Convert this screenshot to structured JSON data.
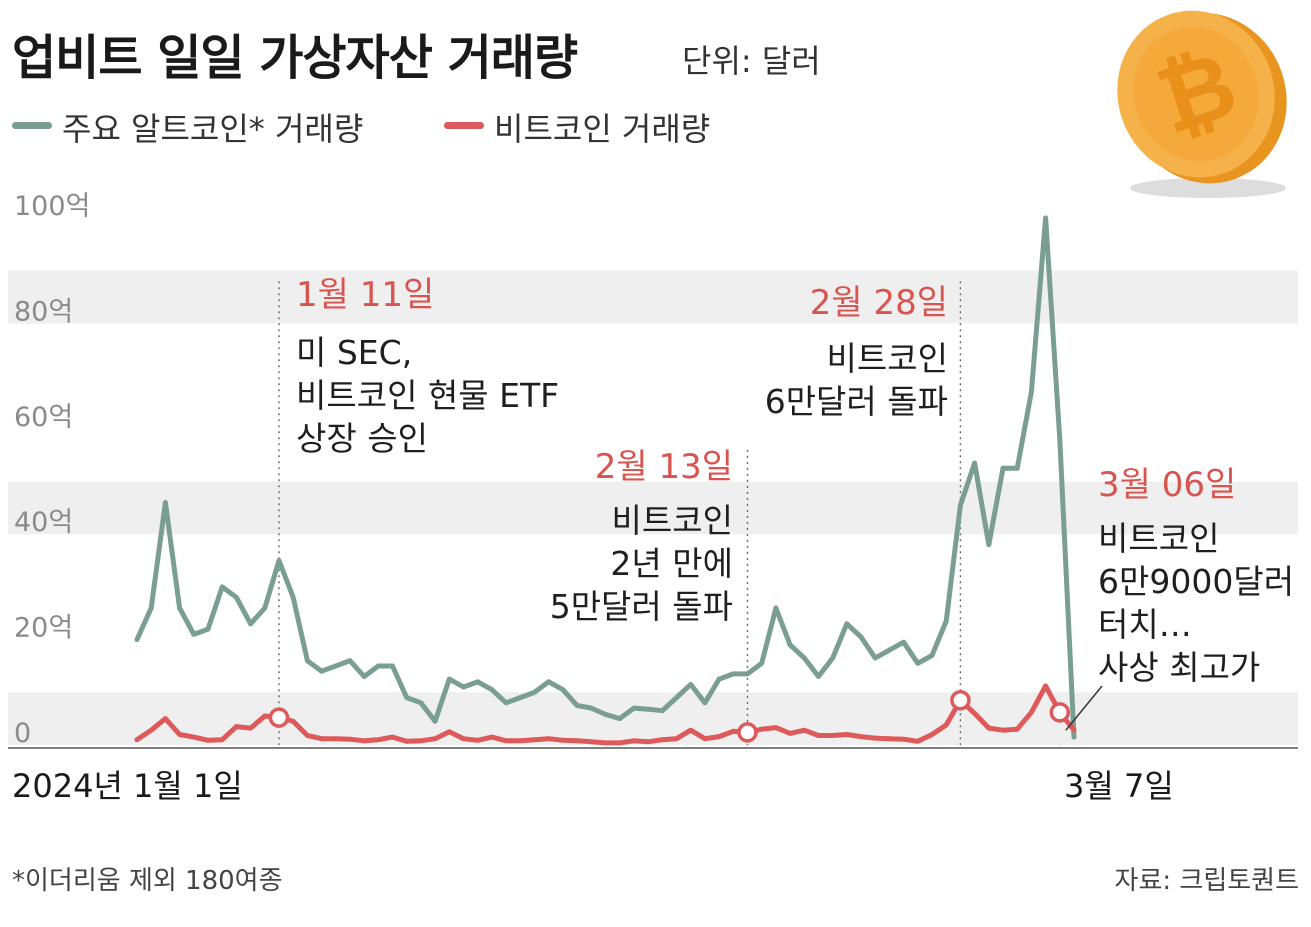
{
  "header": {
    "title": "업비트 일일 가상자산 거래량",
    "unit": "단위: 달러"
  },
  "legend": [
    {
      "label": "주요 알트코인* 거래량",
      "color": "#7a9e92"
    },
    {
      "label": "비트코인 거래량",
      "color": "#de5a5a"
    }
  ],
  "colors": {
    "band": "#efefef",
    "alt": "#7a9e92",
    "btc": "#de5a5a",
    "annotation_date": "#d9534f",
    "annotation_text": "#1f1f1f"
  },
  "chart_data": {
    "type": "line",
    "title": "업비트 일일 가상자산 거래량",
    "ylabel": "단위: 달러",
    "ylim": [
      0,
      100
    ],
    "y_ticks": [
      {
        "value": 0,
        "label": "0"
      },
      {
        "value": 20,
        "label": "20억"
      },
      {
        "value": 40,
        "label": "40억"
      },
      {
        "value": 60,
        "label": "60억"
      },
      {
        "value": 80,
        "label": "80억"
      },
      {
        "value": 100,
        "label": "100억"
      }
    ],
    "x_start_label": "2024년 1월 1일",
    "x_end_label": "3월 7일",
    "x_count": 67,
    "series": [
      {
        "name": "주요 알트코인* 거래량",
        "color": "#7a9e92",
        "values": [
          20,
          26,
          46,
          26,
          21,
          22,
          30,
          28,
          23,
          26,
          35,
          28,
          16,
          14,
          15,
          16,
          13,
          15,
          15,
          9,
          8,
          4.5,
          12.5,
          11,
          12,
          10.5,
          8,
          9,
          10,
          12,
          10.5,
          7.5,
          7,
          5.8,
          5,
          7,
          6.8,
          6.5,
          9,
          11.5,
          8,
          12.5,
          13.5,
          13.5,
          15.5,
          26,
          19,
          16.5,
          13,
          16.5,
          23,
          20.5,
          16.5,
          18,
          19.5,
          15.5,
          17,
          23.5,
          45.5,
          53.5,
          38,
          52.5,
          52.5,
          67,
          100,
          58,
          1.5
        ]
      },
      {
        "name": "비트코인 거래량",
        "color": "#de5a5a",
        "values": [
          1,
          2.8,
          5,
          2,
          1.5,
          0.9,
          1,
          3.5,
          3.2,
          5.5,
          5.2,
          4.5,
          1.8,
          1.2,
          1.2,
          1.1,
          0.8,
          1,
          1.5,
          0.7,
          0.8,
          1.2,
          2.5,
          1.2,
          0.9,
          1.5,
          0.8,
          0.8,
          1,
          1.2,
          0.9,
          0.8,
          0.6,
          0.4,
          0.4,
          0.8,
          0.6,
          1,
          1.2,
          2.8,
          1.2,
          1.6,
          2.6,
          2.4,
          3,
          3.3,
          2.2,
          2.8,
          1.8,
          1.8,
          2,
          1.6,
          1.3,
          1.2,
          1.1,
          0.7,
          2,
          3.8,
          8.5,
          6,
          3.2,
          2.8,
          3,
          6.2,
          11.2,
          6.2,
          2.8
        ]
      }
    ],
    "markers": [
      {
        "series": 1,
        "index": 10
      },
      {
        "series": 1,
        "index": 43
      },
      {
        "series": 1,
        "index": 58
      },
      {
        "series": 1,
        "index": 65
      }
    ],
    "annotations": [
      {
        "index": 10,
        "date": "1월 11일",
        "lines": [
          "미 SEC,",
          "비트코인 현물 ETF",
          "상장 승인"
        ],
        "align": "left",
        "line_top_value": 88
      },
      {
        "index": 43,
        "date": "2월 13일",
        "lines": [
          "비트코인",
          "2년 만에",
          "5만달러 돌파"
        ],
        "align": "right",
        "line_top_value": 56
      },
      {
        "index": 58,
        "date": "2월 28일",
        "lines": [
          "비트코인",
          "6만달러 돌파"
        ],
        "align": "right",
        "line_top_value": 88
      },
      {
        "index": 65,
        "date": "3월 06일",
        "lines": [
          "비트코인",
          "6만9000달러",
          "터치…",
          "사상 최고가"
        ],
        "align": "left",
        "line_top_value": 0
      }
    ]
  },
  "footer": {
    "footnote": "*이더리움 제외 180여종",
    "source": "자료: 크립토퀀트"
  }
}
